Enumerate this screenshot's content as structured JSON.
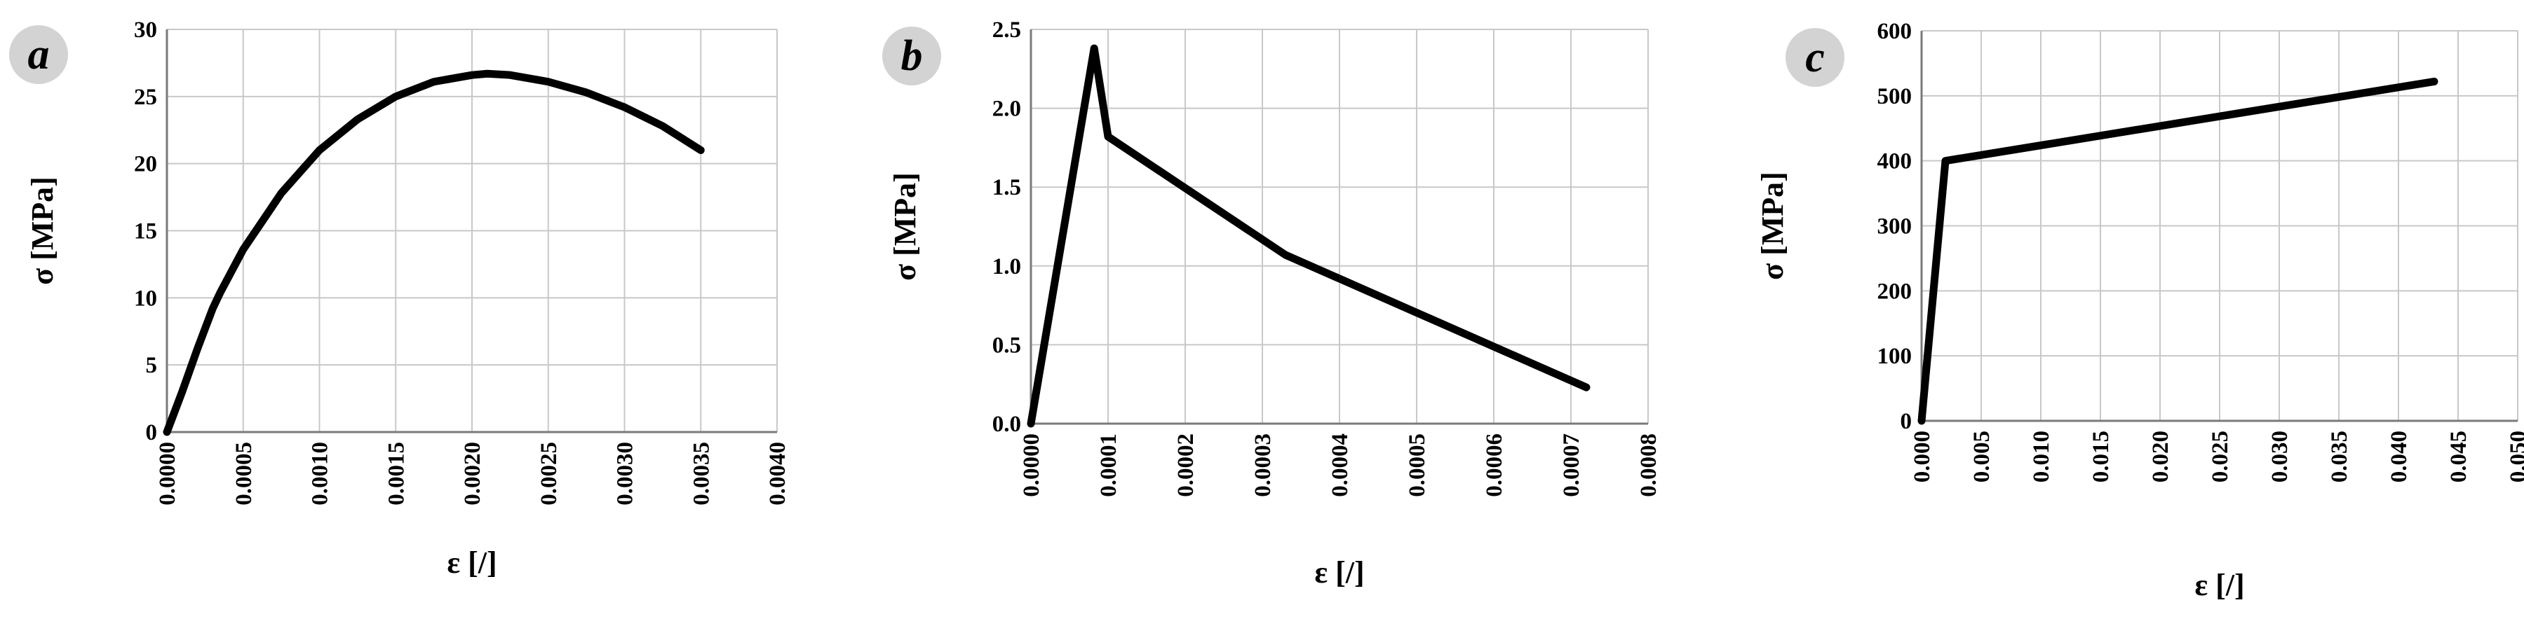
{
  "chart_data": [
    {
      "type": "line",
      "panel_label": "a",
      "xlabel": "ε [/]",
      "ylabel": "σ [MPa]",
      "xlim": [
        0,
        0.004
      ],
      "ylim": [
        0,
        30
      ],
      "xticks": [
        "0.0000",
        "0.0005",
        "0.0010",
        "0.0015",
        "0.0020",
        "0.0025",
        "0.0030",
        "0.0035",
        "0.0040"
      ],
      "yticks": [
        "0",
        "5",
        "10",
        "15",
        "20",
        "25",
        "30"
      ],
      "grid": true,
      "color": "#000000",
      "series": [
        {
          "x": [
            0,
            0.0001,
            0.0002,
            0.0003,
            0.00035,
            0.0005,
            0.00075,
            0.001,
            0.00125,
            0.0015,
            0.00175,
            0.002,
            0.0021,
            0.00225,
            0.0025,
            0.00275,
            0.003,
            0.00325,
            0.0035
          ],
          "y": [
            0,
            3,
            6.2,
            9.2,
            10.4,
            13.6,
            17.8,
            21.0,
            23.3,
            25.0,
            26.1,
            26.6,
            26.7,
            26.6,
            26.1,
            25.3,
            24.2,
            22.8,
            21.0
          ]
        }
      ]
    },
    {
      "type": "line",
      "panel_label": "b",
      "xlabel": "ε [/]",
      "ylabel": "σ [MPa]",
      "xlim": [
        0,
        0.0008
      ],
      "ylim": [
        0,
        2.5
      ],
      "xticks": [
        "0.0000",
        "0.0001",
        "0.0002",
        "0.0003",
        "0.0004",
        "0.0005",
        "0.0006",
        "0.0007",
        "0.0008"
      ],
      "yticks": [
        "0.0",
        "0.5",
        "1.0",
        "1.5",
        "2.0",
        "2.5"
      ],
      "grid": true,
      "color": "#000000",
      "series": [
        {
          "x": [
            0,
            8.2e-05,
            0.0001,
            0.00033,
            0.00072
          ],
          "y": [
            0,
            2.38,
            1.82,
            1.07,
            0.23
          ]
        }
      ]
    },
    {
      "type": "line",
      "panel_label": "c",
      "xlabel": "ε [/]",
      "ylabel": "σ [MPa]",
      "xlim": [
        0,
        0.05
      ],
      "ylim": [
        0,
        600
      ],
      "xticks": [
        "0.000",
        "0.005",
        "0.010",
        "0.015",
        "0.020",
        "0.025",
        "0.030",
        "0.035",
        "0.040",
        "0.045",
        "0.050"
      ],
      "yticks": [
        "0",
        "100",
        "200",
        "300",
        "400",
        "500",
        "600"
      ],
      "grid": true,
      "color": "#000000",
      "series": [
        {
          "x": [
            0,
            0.002,
            0.043
          ],
          "y": [
            0,
            400,
            522
          ]
        }
      ]
    }
  ]
}
